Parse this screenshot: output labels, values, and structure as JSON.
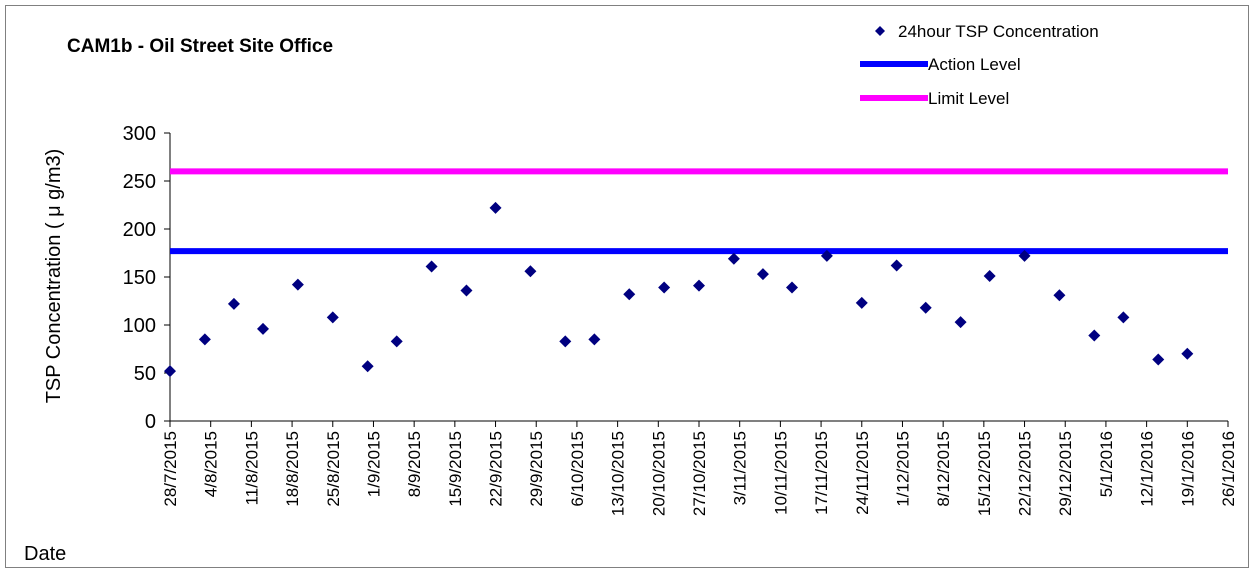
{
  "chart_data": {
    "type": "scatter",
    "title": "CAM1b - Oil Street Site Office",
    "ylabel": "TSP Concentration ( μ g/m3)",
    "xlabel": "Date",
    "ylim": [
      0,
      300
    ],
    "yticks": [
      0,
      50,
      100,
      150,
      200,
      250,
      300
    ],
    "xlim": [
      "28/7/2015",
      "26/1/2016"
    ],
    "xtick_labels": [
      "28/7/2015",
      "4/8/2015",
      "11/8/2015",
      "18/8/2015",
      "25/8/2015",
      "1/9/2015",
      "8/9/2015",
      "15/9/2015",
      "22/9/2015",
      "29/9/2015",
      "6/10/2015",
      "13/10/2015",
      "20/10/2015",
      "27/10/2015",
      "3/11/2015",
      "10/11/2015",
      "17/11/2015",
      "24/11/2015",
      "1/12/2015",
      "8/12/2015",
      "15/12/2015",
      "22/12/2015",
      "29/12/2015",
      "5/1/2016",
      "12/1/2016",
      "19/1/2016",
      "26/1/2016"
    ],
    "series": [
      {
        "name": "24hour TSP Concentration",
        "color": "#000080",
        "marker": "diamond",
        "x": [
          "28/7/2015",
          "3/8/2015",
          "8/8/2015",
          "13/8/2015",
          "19/8/2015",
          "25/8/2015",
          "31/8/2015",
          "5/9/2015",
          "11/9/2015",
          "17/9/2015",
          "22/9/2015",
          "28/9/2015",
          "4/10/2015",
          "9/10/2015",
          "15/10/2015",
          "21/10/2015",
          "27/10/2015",
          "2/11/2015",
          "7/11/2015",
          "12/11/2015",
          "18/11/2015",
          "24/11/2015",
          "30/11/2015",
          "5/12/2015",
          "11/12/2015",
          "16/12/2015",
          "22/12/2015",
          "28/12/2015",
          "3/1/2016",
          "8/1/2016",
          "14/1/2016",
          "19/1/2016"
        ],
        "y": [
          52,
          85,
          122,
          96,
          142,
          108,
          57,
          83,
          161,
          136,
          222,
          156,
          83,
          85,
          132,
          139,
          141,
          169,
          153,
          139,
          172,
          123,
          162,
          118,
          103,
          151,
          172,
          131,
          89,
          108,
          64,
          70
        ]
      },
      {
        "name": "Action Level",
        "color": "#0000FF",
        "type": "hline",
        "y": 177
      },
      {
        "name": "Limit Level",
        "color": "#FF00FF",
        "type": "hline",
        "y": 260
      }
    ],
    "legend_position": "top-right",
    "grid": false
  }
}
